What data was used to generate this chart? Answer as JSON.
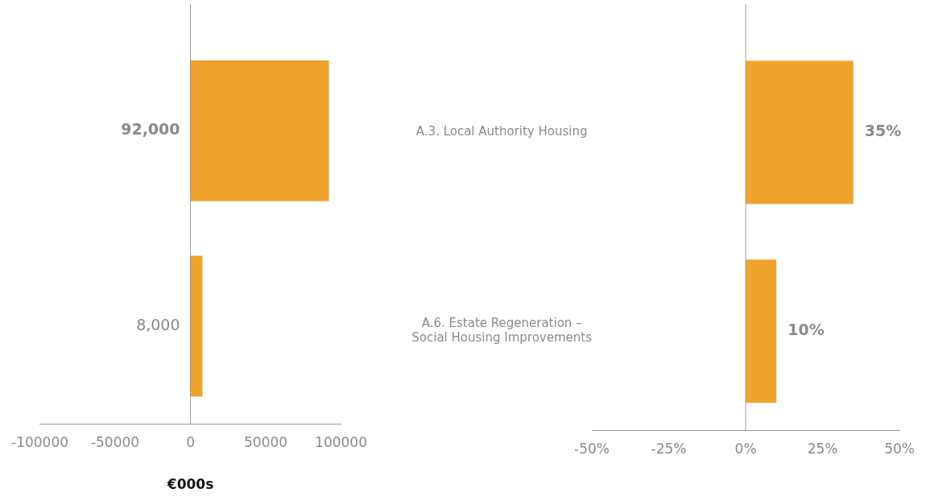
{
  "chart_data": [
    {
      "type": "bar",
      "orientation": "horizontal",
      "categories": [
        null,
        null
      ],
      "values": [
        92000,
        8000
      ],
      "value_labels": [
        "92,000",
        "8,000"
      ],
      "color": "#eea32d",
      "xlim": [
        -100000,
        100000
      ],
      "xticks": [
        -100000,
        -50000,
        0,
        50000,
        100000
      ],
      "xlabel": "€000s",
      "tick_labels": "x",
      "grid": false,
      "legend": false,
      "ref_lines": [
        {
          "axis": "x",
          "value": 0,
          "color": "#999999"
        }
      ]
    },
    {
      "type": "bar",
      "orientation": "horizontal",
      "categories": [
        "A.3. Local Authority Housing",
        "A.6. Estate Regeneration – Social Housing Improvements"
      ],
      "values": [
        35,
        10
      ],
      "value_labels": [
        "35%",
        "10%"
      ],
      "color": "#eea32d",
      "xlim": [
        -50,
        50
      ],
      "xticks": [
        {
          "value": -50,
          "label": "-50%"
        },
        {
          "value": -25,
          "label": "-25%"
        },
        {
          "value": 0,
          "label": "0%"
        },
        {
          "value": 25,
          "label": "25%"
        },
        {
          "value": 50,
          "label": "50%"
        }
      ],
      "grid": false,
      "legend": false,
      "ref_lines": [
        {
          "axis": "x",
          "value": 0,
          "color": "#999999"
        }
      ]
    }
  ]
}
